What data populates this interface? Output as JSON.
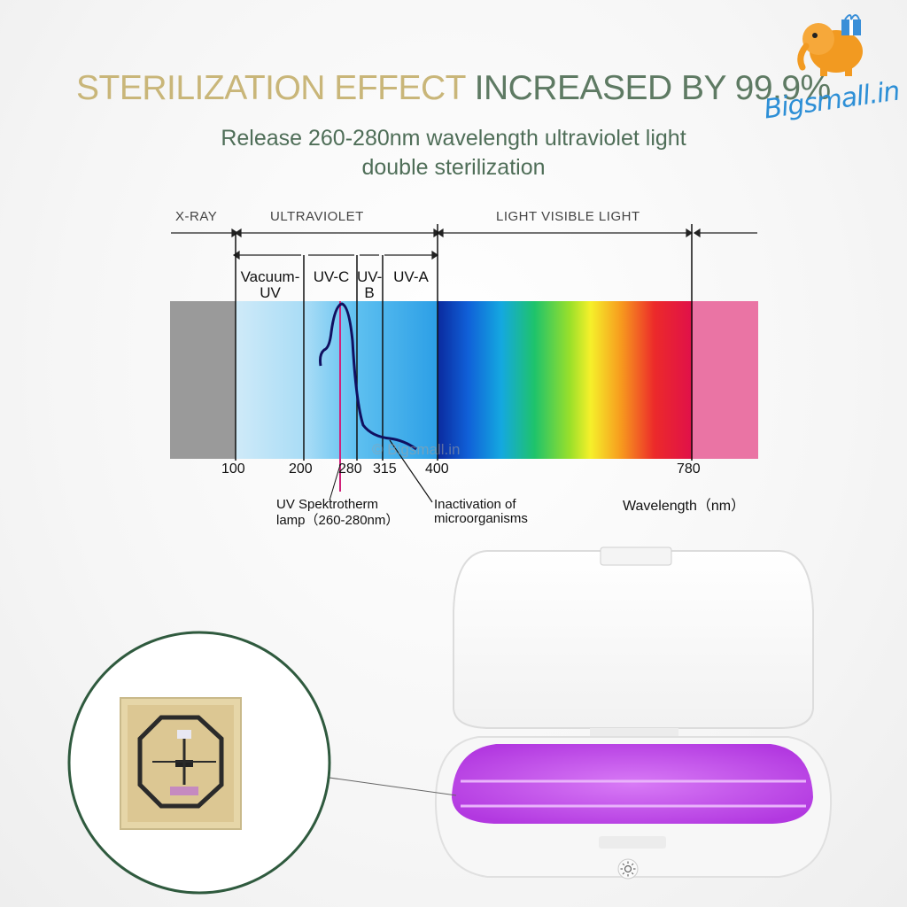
{
  "headline": {
    "part1": "STERILIZATION EFFECT ",
    "part2": "INCREASED BY 99.9%",
    "color_part1": "#c9b679",
    "color_part2": "#5e7a63"
  },
  "subtitle": {
    "line1": "Release 260-280nm wavelength ultraviolet light",
    "line2": "double sterilization"
  },
  "logo": {
    "text": "Bigsmall.in",
    "icon": "elephant-gift-icon"
  },
  "watermark": "© Bigsmall.in",
  "spectrum": {
    "regions": {
      "xray": "X-RAY",
      "ultraviolet": "ULTRAVIOLET",
      "visible": "LIGHT VISIBLE LIGHT"
    },
    "bands": {
      "vacuum_uv_1": "Vacuum-",
      "vacuum_uv_2": "UV",
      "uvc": "UV-C",
      "uvb_1": "UV-",
      "uvb_2": "B",
      "uva": "UV-A"
    },
    "ticks": [
      "100",
      "200",
      "280",
      "315",
      "400",
      "780"
    ],
    "lamp_note_1": "UV Spektrotherm",
    "lamp_note_2": "lamp（260-280nm）",
    "inactivation_1": "Inactivation of",
    "inactivation_2": "microorganisms",
    "wavelength_label": "Wavelength（nm）"
  },
  "device": {
    "interior_color": "#c24fe8",
    "button_icon": "sun-icon"
  },
  "chip": {
    "icon": "uv-led-chip-icon"
  }
}
